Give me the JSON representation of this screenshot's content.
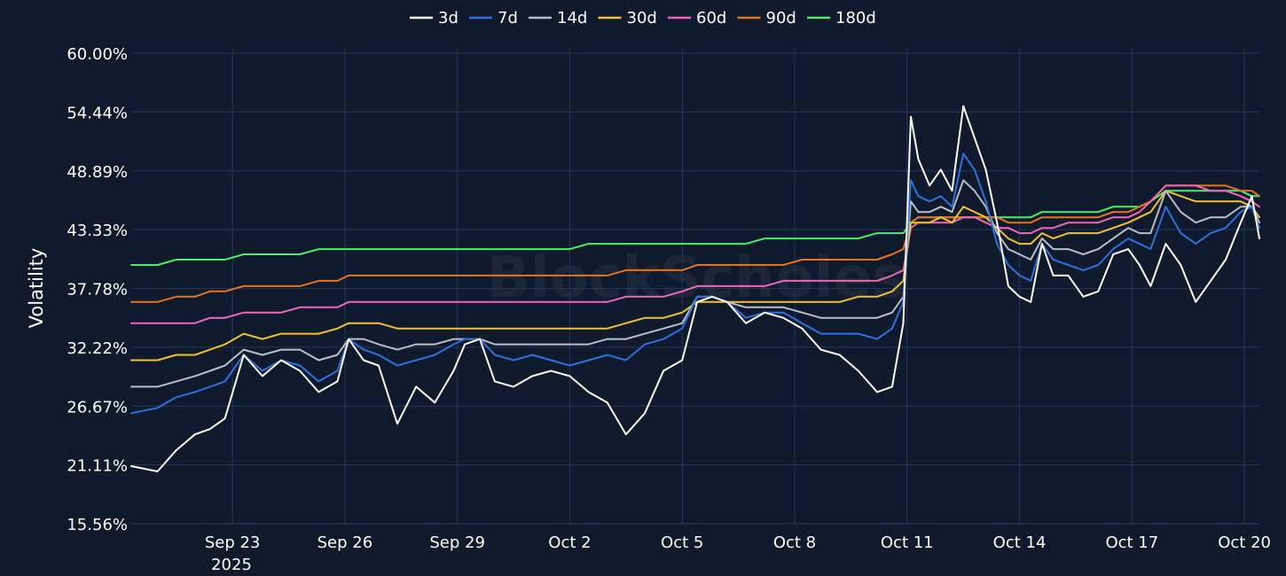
{
  "chart_data": {
    "type": "line",
    "title": "",
    "xlabel": "",
    "ylabel": "Volatility",
    "watermark": "BlockScholes",
    "ylim": [
      15.56,
      60.0
    ],
    "y_ticks": [
      "15.56%",
      "21.11%",
      "26.67%",
      "32.22%",
      "37.78%",
      "43.33%",
      "48.89%",
      "54.44%",
      "60.00%"
    ],
    "y_tick_values": [
      15.56,
      21.11,
      26.67,
      32.22,
      37.78,
      43.33,
      48.89,
      54.44,
      60.0
    ],
    "x_ticks": [
      "Sep 23",
      "Sep 26",
      "Sep 29",
      "Oct 2",
      "Oct 5",
      "Oct 8",
      "Oct 11",
      "Oct 14",
      "Oct 17",
      "Oct 20"
    ],
    "x_tick_values": [
      0,
      3,
      6,
      9,
      12,
      15,
      18,
      21,
      24,
      27
    ],
    "x_year_label": "2025",
    "xlim": [
      -2.7,
      27.4
    ],
    "legend_position": "top-center",
    "x": [
      -2.7,
      -2.0,
      -1.5,
      -1.0,
      -0.6,
      -0.2,
      0.3,
      0.8,
      1.3,
      1.8,
      2.3,
      2.8,
      3.1,
      3.5,
      3.9,
      4.4,
      4.9,
      5.4,
      5.9,
      6.2,
      6.6,
      7.0,
      7.5,
      8.0,
      8.5,
      9.0,
      9.5,
      10.0,
      10.5,
      11.0,
      11.5,
      12.0,
      12.4,
      12.8,
      13.2,
      13.7,
      14.2,
      14.7,
      15.2,
      15.7,
      16.2,
      16.7,
      17.2,
      17.6,
      17.9,
      18.1,
      18.3,
      18.6,
      18.9,
      19.2,
      19.5,
      19.8,
      20.1,
      20.4,
      20.7,
      21.0,
      21.3,
      21.6,
      21.9,
      22.3,
      22.7,
      23.1,
      23.5,
      23.9,
      24.2,
      24.5,
      24.9,
      25.3,
      25.7,
      26.1,
      26.5,
      26.9,
      27.2,
      27.4
    ],
    "series": [
      {
        "name": "3d",
        "color": "#ffffff",
        "values": [
          21.0,
          20.5,
          22.5,
          24.0,
          24.5,
          25.5,
          31.5,
          29.5,
          31.0,
          30.0,
          28.0,
          29.0,
          33.0,
          31.0,
          30.5,
          25.0,
          28.5,
          27.0,
          30.0,
          32.5,
          33.0,
          29.0,
          28.5,
          29.5,
          30.0,
          29.5,
          28.0,
          27.0,
          24.0,
          26.0,
          30.0,
          31.0,
          36.5,
          37.0,
          36.5,
          34.5,
          35.5,
          35.0,
          34.0,
          32.0,
          31.5,
          30.0,
          28.0,
          28.5,
          34.5,
          54.0,
          50.0,
          47.5,
          49.0,
          47.0,
          55.0,
          52.0,
          49.0,
          44.0,
          38.0,
          37.0,
          36.5,
          42.0,
          39.0,
          39.0,
          37.0,
          37.5,
          41.0,
          41.5,
          40.0,
          38.0,
          42.0,
          40.0,
          36.5,
          38.5,
          40.5,
          44.0,
          46.5,
          42.5
        ]
      },
      {
        "name": "7d",
        "color": "#2f6fe0",
        "values": [
          26.0,
          26.5,
          27.5,
          28.0,
          28.5,
          29.0,
          31.5,
          30.0,
          31.0,
          30.5,
          29.0,
          30.0,
          33.0,
          32.0,
          31.5,
          30.5,
          31.0,
          31.5,
          32.5,
          33.0,
          33.0,
          31.5,
          31.0,
          31.5,
          31.0,
          30.5,
          31.0,
          31.5,
          31.0,
          32.5,
          33.0,
          34.0,
          37.0,
          37.0,
          36.5,
          35.0,
          35.5,
          35.5,
          34.5,
          33.5,
          33.5,
          33.5,
          33.0,
          34.0,
          36.5,
          48.0,
          46.5,
          46.0,
          46.5,
          45.5,
          50.5,
          49.0,
          46.0,
          42.0,
          40.0,
          39.0,
          38.5,
          42.0,
          40.5,
          40.0,
          39.5,
          40.0,
          41.5,
          42.5,
          42.0,
          41.5,
          45.5,
          43.0,
          42.0,
          43.0,
          43.5,
          45.0,
          45.5,
          43.5
        ]
      },
      {
        "name": "14d",
        "color": "#b8bfc9",
        "values": [
          28.5,
          28.5,
          29.0,
          29.5,
          30.0,
          30.5,
          32.0,
          31.5,
          32.0,
          32.0,
          31.0,
          31.5,
          33.0,
          33.0,
          32.5,
          32.0,
          32.5,
          32.5,
          33.0,
          33.0,
          33.0,
          32.5,
          32.5,
          32.5,
          32.5,
          32.5,
          32.5,
          33.0,
          33.0,
          33.5,
          34.0,
          34.5,
          37.0,
          37.0,
          36.5,
          36.0,
          36.0,
          36.0,
          35.5,
          35.0,
          35.0,
          35.0,
          35.0,
          35.5,
          37.0,
          46.0,
          45.0,
          45.0,
          45.5,
          45.0,
          48.0,
          47.0,
          45.5,
          43.0,
          41.5,
          41.0,
          40.5,
          42.5,
          41.5,
          41.5,
          41.0,
          41.5,
          42.5,
          43.5,
          43.0,
          43.0,
          47.0,
          45.0,
          44.0,
          44.5,
          44.5,
          45.5,
          45.5,
          44.0
        ]
      },
      {
        "name": "30d",
        "color": "#f2c12e",
        "values": [
          31.0,
          31.0,
          31.5,
          31.5,
          32.0,
          32.5,
          33.5,
          33.0,
          33.5,
          33.5,
          33.5,
          34.0,
          34.5,
          34.5,
          34.5,
          34.0,
          34.0,
          34.0,
          34.0,
          34.0,
          34.0,
          34.0,
          34.0,
          34.0,
          34.0,
          34.0,
          34.0,
          34.0,
          34.5,
          35.0,
          35.0,
          35.5,
          36.5,
          36.5,
          36.5,
          36.5,
          36.5,
          36.5,
          36.5,
          36.5,
          36.5,
          37.0,
          37.0,
          37.5,
          38.5,
          44.0,
          44.0,
          44.0,
          44.5,
          44.0,
          45.5,
          45.0,
          44.5,
          43.5,
          42.5,
          42.0,
          42.0,
          43.0,
          42.5,
          43.0,
          43.0,
          43.0,
          43.5,
          44.0,
          44.5,
          45.0,
          47.0,
          46.5,
          46.0,
          46.0,
          46.0,
          46.0,
          45.5,
          44.5
        ]
      },
      {
        "name": "60d",
        "color": "#f266b5",
        "values": [
          34.5,
          34.5,
          34.5,
          34.5,
          35.0,
          35.0,
          35.5,
          35.5,
          35.5,
          36.0,
          36.0,
          36.0,
          36.5,
          36.5,
          36.5,
          36.5,
          36.5,
          36.5,
          36.5,
          36.5,
          36.5,
          36.5,
          36.5,
          36.5,
          36.5,
          36.5,
          36.5,
          36.5,
          37.0,
          37.0,
          37.0,
          37.5,
          38.0,
          38.0,
          38.0,
          38.0,
          38.0,
          38.5,
          38.5,
          38.5,
          38.5,
          38.5,
          38.5,
          39.0,
          39.5,
          43.5,
          44.0,
          44.0,
          44.0,
          44.0,
          44.5,
          44.5,
          44.0,
          43.5,
          43.5,
          43.0,
          43.0,
          43.5,
          43.5,
          44.0,
          44.0,
          44.0,
          44.5,
          44.5,
          45.0,
          46.0,
          47.5,
          47.5,
          47.5,
          47.0,
          47.0,
          46.5,
          46.0,
          45.5
        ]
      },
      {
        "name": "90d",
        "color": "#e8731f",
        "values": [
          36.5,
          36.5,
          37.0,
          37.0,
          37.5,
          37.5,
          38.0,
          38.0,
          38.0,
          38.0,
          38.5,
          38.5,
          39.0,
          39.0,
          39.0,
          39.0,
          39.0,
          39.0,
          39.0,
          39.0,
          39.0,
          39.0,
          39.0,
          39.0,
          39.0,
          39.0,
          39.0,
          39.0,
          39.5,
          39.5,
          39.5,
          39.5,
          40.0,
          40.0,
          40.0,
          40.0,
          40.0,
          40.0,
          40.5,
          40.5,
          40.5,
          40.5,
          40.5,
          41.0,
          41.5,
          44.0,
          44.5,
          44.5,
          44.5,
          44.5,
          44.5,
          44.5,
          44.5,
          44.5,
          44.0,
          44.0,
          44.0,
          44.5,
          44.5,
          44.5,
          44.5,
          44.5,
          45.0,
          45.0,
          45.5,
          46.0,
          47.5,
          47.5,
          47.5,
          47.5,
          47.5,
          47.0,
          47.0,
          46.5
        ]
      },
      {
        "name": "180d",
        "color": "#4ded6a",
        "values": [
          40.0,
          40.0,
          40.5,
          40.5,
          40.5,
          40.5,
          41.0,
          41.0,
          41.0,
          41.0,
          41.5,
          41.5,
          41.5,
          41.5,
          41.5,
          41.5,
          41.5,
          41.5,
          41.5,
          41.5,
          41.5,
          41.5,
          41.5,
          41.5,
          41.5,
          41.5,
          42.0,
          42.0,
          42.0,
          42.0,
          42.0,
          42.0,
          42.0,
          42.0,
          42.0,
          42.0,
          42.5,
          42.5,
          42.5,
          42.5,
          42.5,
          42.5,
          43.0,
          43.0,
          43.0,
          44.0,
          44.5,
          44.5,
          44.5,
          44.5,
          44.5,
          44.5,
          44.5,
          44.5,
          44.5,
          44.5,
          44.5,
          45.0,
          45.0,
          45.0,
          45.0,
          45.0,
          45.5,
          45.5,
          45.5,
          46.0,
          47.0,
          47.0,
          47.0,
          47.0,
          47.0,
          47.0,
          46.5,
          46.5
        ]
      }
    ]
  }
}
